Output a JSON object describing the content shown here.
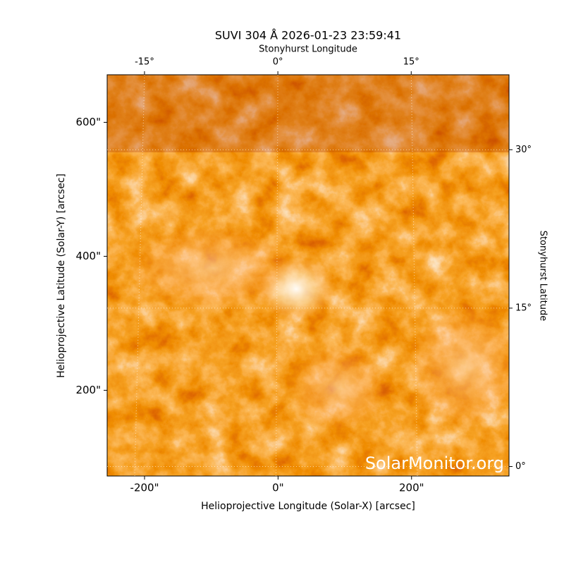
{
  "chart_data": {
    "type": "image",
    "title": "SUVI 304 Å 2026-01-23 23:59:41",
    "xlabel": "Helioprojective Longitude (Solar-X) [arcsec]",
    "ylabel": "Helioprojective Latitude (Solar-Y) [arcsec]",
    "x2label": "Stonyhurst Longitude",
    "y2label": "Stonyhurst Latitude",
    "xlim": [
      -256,
      346
    ],
    "ylim": [
      72,
      671
    ],
    "xticks": [
      {
        "value": -200,
        "label": "-200\""
      },
      {
        "value": 0,
        "label": "0\""
      },
      {
        "value": 200,
        "label": "200\""
      }
    ],
    "yticks": [
      {
        "value": 200,
        "label": "200\""
      },
      {
        "value": 400,
        "label": "400\""
      },
      {
        "value": 600,
        "label": "600\""
      }
    ],
    "x2lim": [
      -19.2,
      26
    ],
    "x2ticks": [
      {
        "value": -15,
        "label": "-15°"
      },
      {
        "value": 0,
        "label": "0°"
      },
      {
        "value": 15,
        "label": "15°"
      }
    ],
    "y2lim": [
      -0.9,
      37.1
    ],
    "y2ticks": [
      {
        "value": 0,
        "label": "0°"
      },
      {
        "value": 15,
        "label": "15°"
      },
      {
        "value": 30,
        "label": "30°"
      }
    ],
    "grid": true,
    "watermark": "SolarMonitor.org"
  }
}
